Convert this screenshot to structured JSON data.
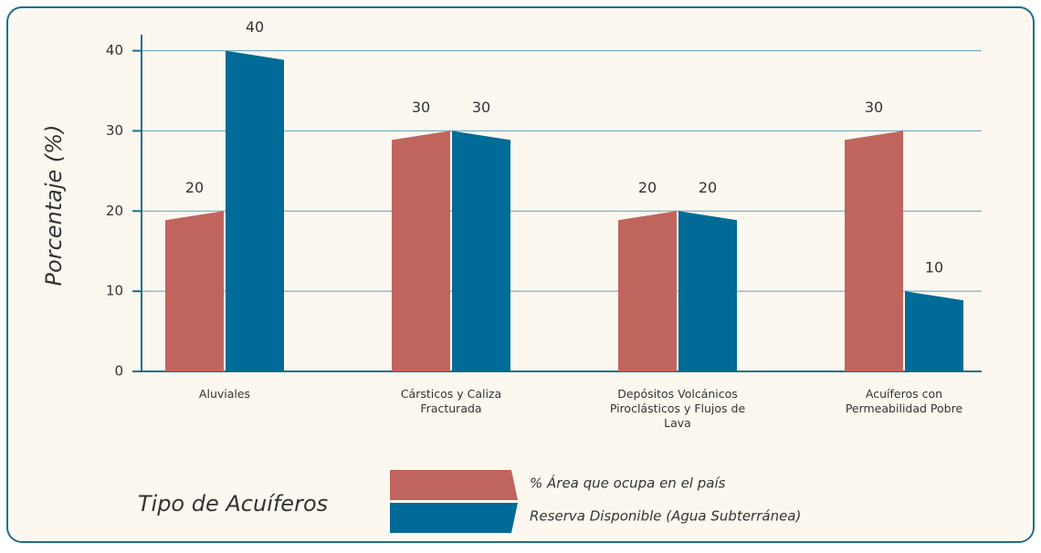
{
  "chart_data": {
    "type": "bar",
    "y_label": "Porcentaje (%)",
    "x_label": "Tipo de Acuíferos",
    "categories": [
      "Aluviales",
      "Cársticos y Caliza Fracturada",
      "Depósitos Volcánicos Piroclásticos y Flujos de Lava",
      "Acuíferos con Permeabilidad Pobre"
    ],
    "series": [
      {
        "name": "% Área que ocupa en el país",
        "color": "#c0655e",
        "values": [
          20,
          30,
          20,
          30
        ]
      },
      {
        "name": "Reserva Disponible (Agua Subterránea)",
        "color": "#006b96",
        "values": [
          40,
          30,
          20,
          10
        ]
      }
    ],
    "ylim": [
      0,
      42
    ],
    "yticks": [
      0,
      10,
      20,
      30,
      40
    ],
    "grid": true
  }
}
